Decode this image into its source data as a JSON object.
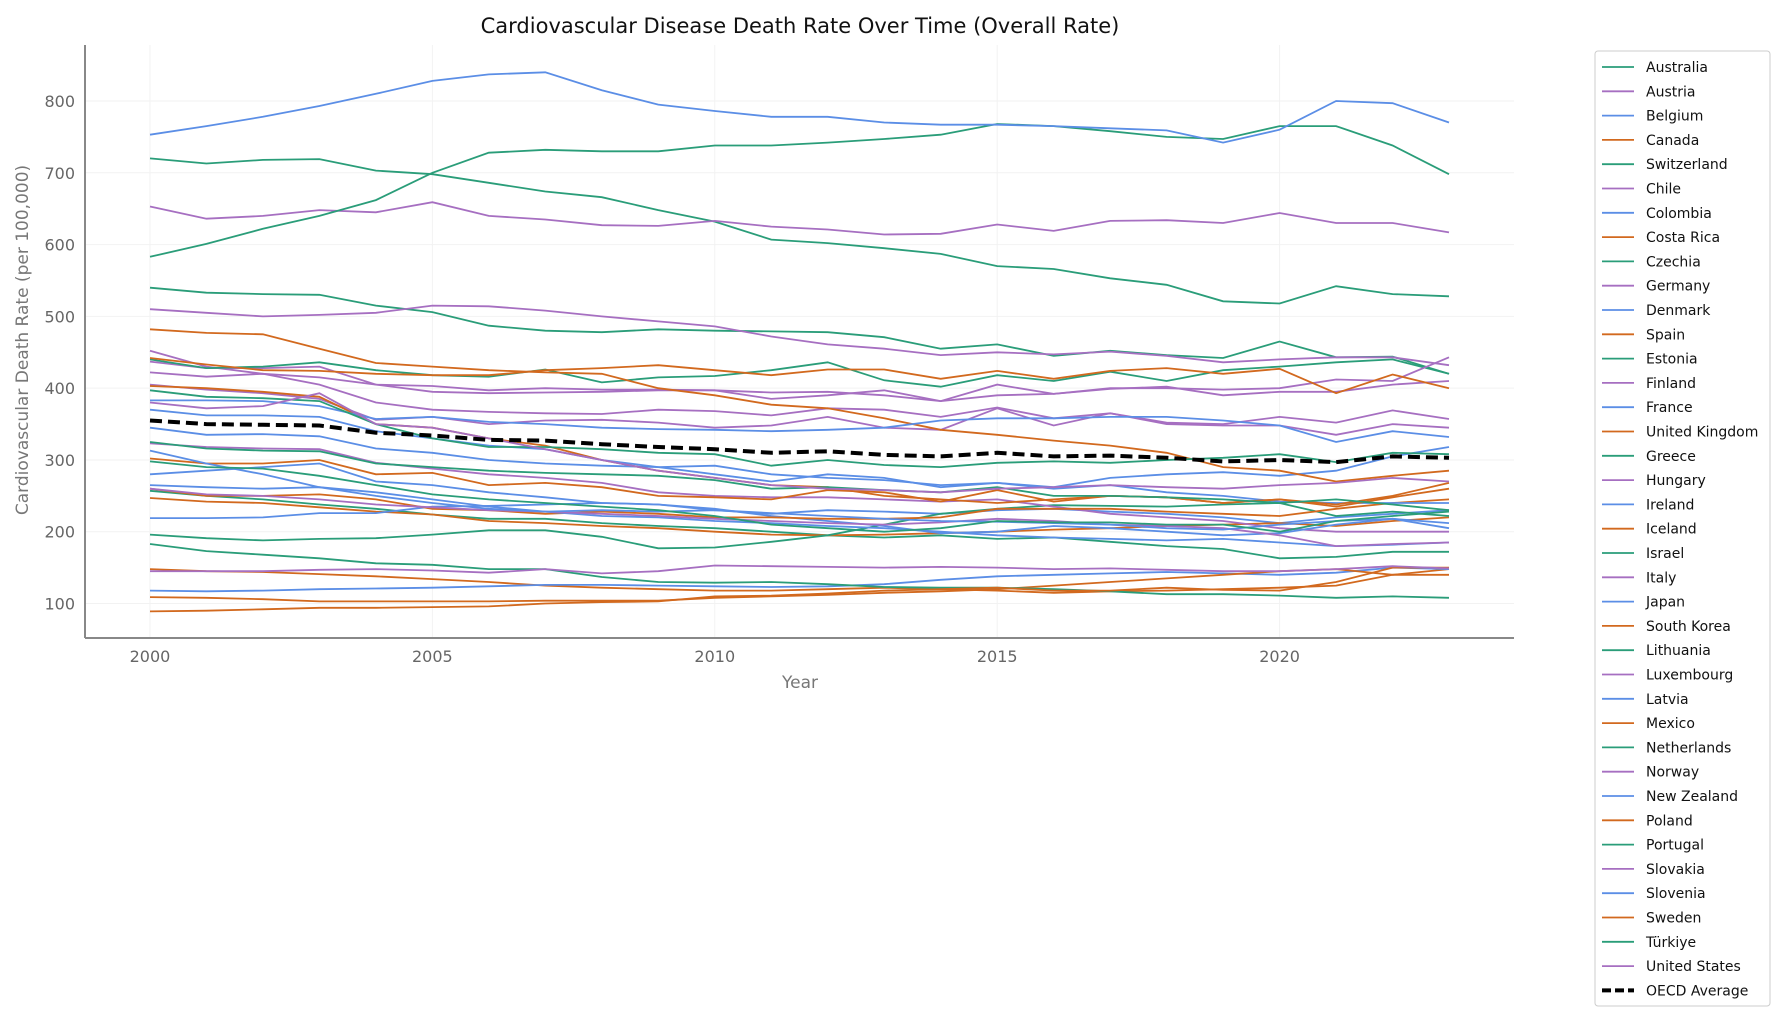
{
  "chart_data": {
    "type": "line",
    "title": "Cardiovascular Disease Death Rate Over Time (Overall Rate)",
    "xlabel": "Year",
    "ylabel": "Cardiovascular Death Rate (per 100,000)",
    "xlim": [
      1998.85,
      2024.15
    ],
    "ylim": [
      52,
      878
    ],
    "xticks": [
      2000,
      2005,
      2010,
      2015,
      2020
    ],
    "yticks": [
      100,
      200,
      300,
      400,
      500,
      600,
      700,
      800
    ],
    "grid": true,
    "legend_position": "outside-right",
    "colors": {
      "green": "#2a9d79",
      "purple": "#a66fc1",
      "blue": "#5b8ee6",
      "orange": "#d2691e",
      "average": "#000000"
    },
    "x": [
      2000,
      2001,
      2002,
      2003,
      2004,
      2005,
      2006,
      2007,
      2008,
      2009,
      2010,
      2011,
      2012,
      2013,
      2014,
      2015,
      2016,
      2017,
      2018,
      2019,
      2020,
      2021,
      2022,
      2023
    ],
    "series": [
      {
        "name": "Australia",
        "color": "#2a9d79",
        "values": [
          257,
          250,
          245,
          238,
          232,
          224,
          218,
          218,
          212,
          208,
          205,
          200,
          195,
          192,
          195,
          190,
          192,
          186,
          180,
          176,
          163,
          165,
          172,
          172
        ]
      },
      {
        "name": "Austria",
        "color": "#a66fc1",
        "values": [
          437,
          428,
          428,
          430,
          405,
          403,
          397,
          400,
          398,
          398,
          397,
          385,
          390,
          397,
          382,
          405,
          392,
          399,
          402,
          390,
          395,
          395,
          405,
          410
        ]
      },
      {
        "name": "Belgium",
        "color": "#5b8ee6",
        "values": [
          280,
          285,
          290,
          295,
          270,
          265,
          255,
          248,
          240,
          238,
          230,
          225,
          230,
          228,
          225,
          230,
          232,
          228,
          225,
          220,
          212,
          220,
          225,
          230
        ]
      },
      {
        "name": "Canada",
        "color": "#d2691e",
        "values": [
          247,
          242,
          240,
          234,
          228,
          224,
          215,
          212,
          208,
          205,
          200,
          196,
          195,
          196,
          198,
          200,
          203,
          205,
          208,
          210,
          212,
          208,
          215,
          220
        ]
      },
      {
        "name": "Switzerland",
        "color": "#2a9d79",
        "values": [
          196,
          191,
          188,
          190,
          191,
          196,
          202,
          202,
          193,
          177,
          178,
          186,
          195,
          210,
          225,
          232,
          237,
          236,
          235,
          238,
          240,
          222,
          228,
          222
        ]
      },
      {
        "name": "Chile",
        "color": "#a66fc1",
        "values": [
          323,
          318,
          316,
          315,
          296,
          288,
          280,
          275,
          268,
          255,
          250,
          248,
          248,
          245,
          242,
          245,
          235,
          225,
          220,
          215,
          205,
          200,
          200,
          200
        ]
      },
      {
        "name": "Colombia",
        "color": "#5b8ee6",
        "values": [
          219,
          219,
          220,
          226,
          226,
          235,
          236,
          238,
          240,
          238,
          232,
          222,
          215,
          208,
          198,
          200,
          208,
          205,
          200,
          195,
          198,
          210,
          218,
          205
        ]
      },
      {
        "name": "Costa Rica",
        "color": "#d2691e",
        "values": [
          260,
          250,
          250,
          252,
          245,
          232,
          230,
          225,
          228,
          225,
          220,
          220,
          218,
          218,
          220,
          232,
          232,
          232,
          228,
          225,
          222,
          232,
          240,
          245
        ]
      },
      {
        "name": "Czechia",
        "color": "#2a9d79",
        "values": [
          540,
          533,
          531,
          530,
          515,
          506,
          487,
          480,
          478,
          482,
          480,
          479,
          478,
          471,
          455,
          461,
          445,
          452,
          446,
          442,
          465,
          443,
          444,
          420
        ]
      },
      {
        "name": "Germany",
        "color": "#a66fc1",
        "values": [
          452,
          430,
          420,
          405,
          380,
          370,
          367,
          365,
          364,
          370,
          368,
          362,
          372,
          370,
          360,
          373,
          358,
          365,
          352,
          350,
          360,
          352,
          369,
          357
        ]
      },
      {
        "name": "Denmark",
        "color": "#5b8ee6",
        "values": [
          345,
          335,
          336,
          333,
          316,
          310,
          300,
          295,
          292,
          290,
          292,
          280,
          275,
          272,
          265,
          268,
          260,
          265,
          255,
          250,
          242,
          240,
          240,
          240
        ]
      },
      {
        "name": "Spain",
        "color": "#d2691e",
        "values": [
          148,
          145,
          144,
          141,
          138,
          134,
          130,
          125,
          122,
          120,
          118,
          118,
          120,
          122,
          120,
          118,
          115,
          117,
          118,
          120,
          122,
          125,
          140,
          148
        ]
      },
      {
        "name": "Estonia",
        "color": "#2a9d79",
        "values": [
          720,
          713,
          718,
          719,
          703,
          698,
          686,
          674,
          666,
          648,
          632,
          607,
          602,
          595,
          587,
          570,
          566,
          553,
          544,
          521,
          518,
          542,
          531,
          528
        ]
      },
      {
        "name": "Finland",
        "color": "#a66fc1",
        "values": [
          405,
          398,
          393,
          385,
          356,
          360,
          350,
          355,
          356,
          352,
          345,
          348,
          360,
          345,
          342,
          372,
          348,
          365,
          350,
          348,
          348,
          335,
          350,
          345
        ]
      },
      {
        "name": "France",
        "color": "#5b8ee6",
        "values": [
          118,
          117,
          118,
          120,
          121,
          122,
          124,
          126,
          126,
          125,
          124,
          123,
          124,
          127,
          133,
          138,
          140,
          142,
          144,
          142,
          140,
          143,
          150,
          148
        ]
      },
      {
        "name": "United Kingdom",
        "color": "#d2691e",
        "values": [
          302,
          295,
          295,
          300,
          280,
          282,
          265,
          268,
          262,
          250,
          248,
          245,
          258,
          255,
          242,
          258,
          242,
          250,
          248,
          240,
          245,
          238,
          250,
          268
        ]
      },
      {
        "name": "Greece",
        "color": "#2a9d79",
        "values": [
          440,
          428,
          430,
          436,
          425,
          418,
          416,
          426,
          408,
          415,
          417,
          425,
          436,
          411,
          402,
          418,
          410,
          423,
          410,
          425,
          430,
          436,
          440,
          420
        ]
      },
      {
        "name": "Hungary",
        "color": "#a66fc1",
        "values": [
          653,
          636,
          640,
          648,
          645,
          659,
          640,
          635,
          627,
          626,
          633,
          625,
          621,
          614,
          615,
          628,
          619,
          633,
          634,
          630,
          644,
          630,
          630,
          617
        ]
      },
      {
        "name": "Ireland",
        "color": "#5b8ee6",
        "values": [
          313,
          295,
          280,
          262,
          255,
          245,
          235,
          228,
          222,
          220,
          215,
          212,
          208,
          205,
          200,
          195,
          192,
          190,
          188,
          190,
          185,
          180,
          182,
          185
        ]
      },
      {
        "name": "Iceland",
        "color": "#d2691e",
        "values": [
          109,
          108,
          106,
          103,
          103,
          103,
          103,
          104,
          104,
          104,
          108,
          110,
          112,
          115,
          117,
          120,
          125,
          130,
          135,
          140,
          145,
          148,
          140,
          140
        ]
      },
      {
        "name": "Israel",
        "color": "#2a9d79",
        "values": [
          183,
          173,
          168,
          163,
          156,
          154,
          148,
          148,
          137,
          130,
          129,
          130,
          127,
          123,
          122,
          122,
          120,
          117,
          113,
          113,
          111,
          108,
          110,
          108
        ]
      },
      {
        "name": "Italy",
        "color": "#a66fc1",
        "values": [
          260,
          252,
          250,
          245,
          238,
          234,
          230,
          228,
          225,
          222,
          218,
          215,
          212,
          210,
          213,
          218,
          215,
          210,
          208,
          205,
          195,
          180,
          183,
          185
        ]
      },
      {
        "name": "Japan",
        "color": "#5b8ee6",
        "values": [
          265,
          262,
          260,
          262,
          250,
          240,
          232,
          228,
          230,
          228,
          230,
          226,
          222,
          218,
          215,
          214,
          212,
          210,
          205,
          203,
          210,
          215,
          218,
          212
        ]
      },
      {
        "name": "South Korea",
        "color": "#d2691e",
        "values": [
          89,
          90,
          92,
          94,
          94,
          95,
          96,
          100,
          102,
          103,
          110,
          111,
          114,
          118,
          120,
          122,
          118,
          118,
          122,
          119,
          118,
          130,
          150,
          150
        ]
      },
      {
        "name": "Lithuania",
        "color": "#2a9d79",
        "values": [
          583,
          601,
          622,
          640,
          662,
          700,
          728,
          732,
          730,
          730,
          738,
          738,
          742,
          747,
          753,
          768,
          765,
          758,
          750,
          747,
          765,
          765,
          738,
          698
        ]
      },
      {
        "name": "Luxembourg",
        "color": "#a66fc1",
        "values": [
          145,
          145,
          145,
          147,
          148,
          146,
          143,
          148,
          142,
          145,
          153,
          152,
          151,
          150,
          151,
          150,
          148,
          149,
          147,
          145,
          145,
          148,
          152,
          149
        ]
      },
      {
        "name": "Latvia",
        "color": "#5b8ee6",
        "values": [
          753,
          765,
          778,
          793,
          810,
          828,
          837,
          840,
          815,
          795,
          786,
          778,
          778,
          770,
          767,
          767,
          765,
          762,
          759,
          742,
          760,
          800,
          797,
          770
        ]
      },
      {
        "name": "Mexico",
        "color": "#d2691e",
        "values": [
          403,
          400,
          395,
          388,
          350,
          345,
          330,
          320,
          300,
          285,
          275,
          265,
          262,
          250,
          245,
          240,
          245,
          250,
          248,
          240,
          245,
          235,
          248,
          260
        ]
      },
      {
        "name": "Netherlands",
        "color": "#2a9d79",
        "values": [
          298,
          290,
          288,
          278,
          265,
          252,
          245,
          240,
          235,
          230,
          222,
          210,
          205,
          200,
          205,
          215,
          213,
          213,
          210,
          210,
          200,
          215,
          222,
          228
        ]
      },
      {
        "name": "Norway",
        "color": "#a66fc1",
        "values": [
          422,
          416,
          420,
          415,
          405,
          395,
          393,
          394,
          395,
          397,
          397,
          394,
          395,
          390,
          382,
          390,
          392,
          400,
          400,
          398,
          400,
          412,
          410,
          443
        ]
      },
      {
        "name": "New Zealand",
        "color": "#5b8ee6",
        "values": [
          370,
          362,
          362,
          360,
          340,
          330,
          320,
          315,
          300,
          290,
          280,
          270,
          280,
          275,
          262,
          268,
          262,
          275,
          280,
          283,
          278,
          285,
          305,
          318
        ]
      },
      {
        "name": "Poland",
        "color": "#d2691e",
        "values": [
          482,
          477,
          475,
          455,
          435,
          430,
          425,
          422,
          420,
          400,
          390,
          377,
          372,
          358,
          342,
          335,
          327,
          320,
          310,
          290,
          285,
          270,
          278,
          285
        ]
      },
      {
        "name": "Portugal",
        "color": "#2a9d79",
        "values": [
          325,
          316,
          313,
          312,
          295,
          290,
          285,
          282,
          280,
          278,
          272,
          260,
          262,
          258,
          255,
          262,
          250,
          250,
          248,
          245,
          240,
          245,
          238,
          230
        ]
      },
      {
        "name": "Slovakia",
        "color": "#a66fc1",
        "values": [
          510,
          505,
          500,
          502,
          505,
          515,
          514,
          508,
          500,
          493,
          486,
          472,
          461,
          455,
          446,
          450,
          447,
          451,
          445,
          436,
          440,
          443,
          443,
          432
        ]
      },
      {
        "name": "Slovenia",
        "color": "#5b8ee6",
        "values": [
          383,
          383,
          382,
          375,
          357,
          360,
          353,
          350,
          345,
          343,
          342,
          340,
          342,
          345,
          355,
          358,
          358,
          360,
          360,
          355,
          348,
          325,
          340,
          332
        ]
      },
      {
        "name": "Sweden",
        "color": "#d2691e",
        "values": [
          442,
          433,
          425,
          424,
          420,
          418,
          418,
          425,
          428,
          432,
          425,
          418,
          426,
          426,
          413,
          424,
          413,
          424,
          428,
          420,
          427,
          393,
          419,
          400
        ]
      },
      {
        "name": "Türkiye",
        "color": "#2a9d79",
        "values": [
          397,
          388,
          386,
          382,
          350,
          330,
          318,
          318,
          315,
          310,
          308,
          292,
          300,
          293,
          290,
          296,
          298,
          296,
          300,
          303,
          308,
          297,
          310,
          308
        ]
      },
      {
        "name": "United States",
        "color": "#a66fc1",
        "values": [
          380,
          372,
          375,
          393,
          350,
          345,
          330,
          315,
          300,
          285,
          275,
          265,
          260,
          258,
          255,
          260,
          262,
          265,
          262,
          260,
          265,
          268,
          275,
          270
        ]
      },
      {
        "name": "OECD Average",
        "color": "#000000",
        "dashed": true,
        "values": [
          355,
          350,
          349,
          348,
          338,
          334,
          328,
          327,
          322,
          318,
          315,
          310,
          312,
          307,
          305,
          310,
          305,
          306,
          303,
          298,
          300,
          297,
          305,
          303
        ]
      }
    ]
  }
}
